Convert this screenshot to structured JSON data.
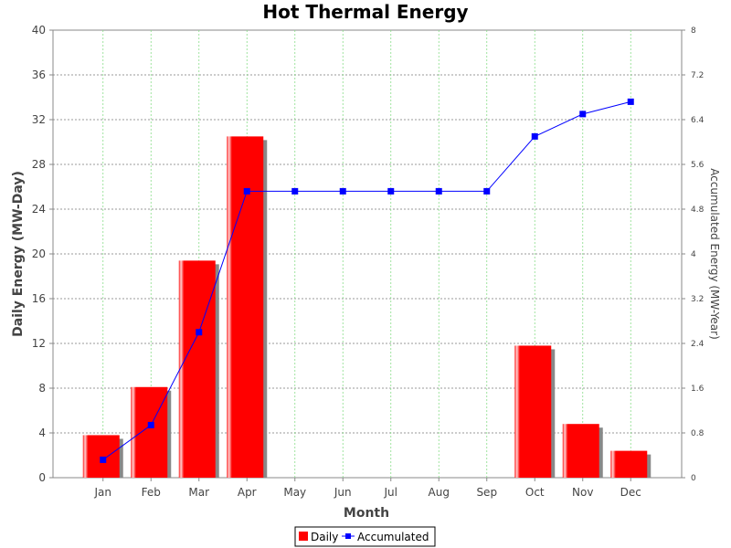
{
  "chart_data": {
    "type": "bar",
    "title": "Hot Thermal Energy",
    "xlabel": "Month",
    "ylabel": "Daily Energy (MW-Day)",
    "y2label": "Accumulated Energy (MW-Year)",
    "categories": [
      "Jan",
      "Feb",
      "Mar",
      "Apr",
      "May",
      "Jun",
      "Jul",
      "Aug",
      "Sep",
      "Oct",
      "Nov",
      "Dec"
    ],
    "ylim": [
      0,
      40
    ],
    "y2lim": [
      0,
      8
    ],
    "yticks": [
      "0",
      "4",
      "8",
      "12",
      "16",
      "20",
      "24",
      "28",
      "32",
      "36",
      "40"
    ],
    "y2ticks": [
      "0",
      "0.8",
      "1.6",
      "2.4",
      "3.2",
      "4",
      "4.8",
      "5.6",
      "6.4",
      "7.2",
      "8"
    ],
    "grid": true,
    "legend_position": "bottom",
    "series": [
      {
        "name": "Daily",
        "type": "bar",
        "axis": "left",
        "color": "#ff0000",
        "values": [
          3.8,
          8.1,
          19.4,
          30.5,
          0,
          0,
          0,
          0,
          0,
          11.8,
          4.8,
          2.4
        ]
      },
      {
        "name": "Accumulated",
        "type": "line",
        "axis": "right",
        "color": "#0000ff",
        "values": [
          0.32,
          0.94,
          2.6,
          5.12,
          5.12,
          5.12,
          5.12,
          5.12,
          5.12,
          6.1,
          6.5,
          6.72
        ]
      }
    ]
  }
}
